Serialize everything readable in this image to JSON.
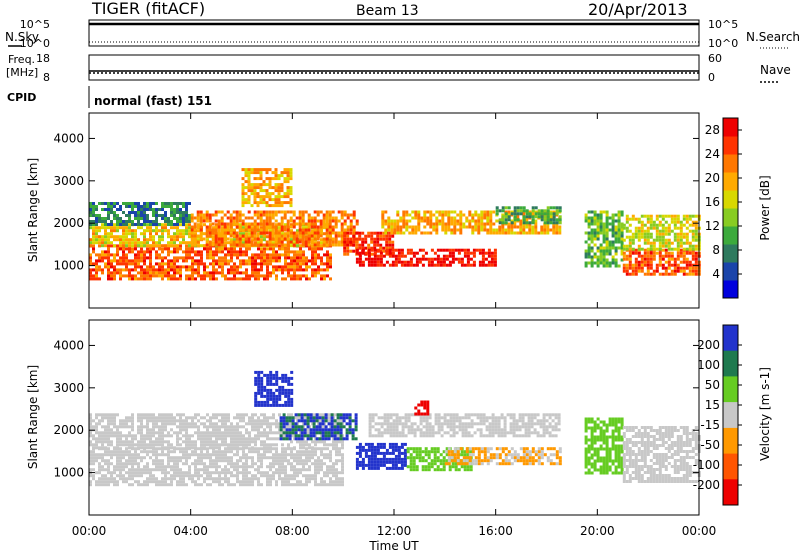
{
  "header": {
    "station": "TIGER (fitACF)",
    "beam": "Beam 13",
    "date": "20/Apr/2013"
  },
  "top_panels": {
    "nsky_label": "N.Sky",
    "nsky_ticks": [
      "10^5",
      "10^0"
    ],
    "nsearch_label": "N.Search",
    "nsearch_ticks": [
      "10^5",
      "10^0"
    ],
    "freq_label_1": "Freq.",
    "freq_label_2": "[MHz]",
    "freq_ticks": [
      "18",
      "8"
    ],
    "nave_label": "Nave",
    "nave_ticks": [
      "60",
      "0"
    ],
    "cpid_label": "CPID",
    "cpid_value": "normal (fast) 151"
  },
  "chart_data": [
    {
      "type": "heatmap",
      "title": "",
      "xlabel": "Time UT",
      "ylabel": "Slant Range [km]",
      "x_ticks": [
        "00:00",
        "04:00",
        "08:00",
        "12:00",
        "16:00",
        "20:00",
        "00:00"
      ],
      "xlim_hours": [
        0,
        24
      ],
      "ylim": [
        0,
        4600
      ],
      "y_ticks": [
        "1000",
        "2000",
        "3000",
        "4000"
      ],
      "colorbar": {
        "label": "Power [dB]",
        "ticks": [
          "4",
          "8",
          "12",
          "16",
          "20",
          "24",
          "28"
        ],
        "range": [
          0,
          30
        ],
        "colors": [
          "#0000dd",
          "#1a44aa",
          "#2e7a5e",
          "#3caa3c",
          "#88cc22",
          "#d8d800",
          "#ffaa00",
          "#ff7700",
          "#ff3300",
          "#ee0000"
        ]
      },
      "regions": [
        {
          "t": [
            0.0,
            9.5
          ],
          "r": [
            700,
            1500
          ],
          "value": 24
        },
        {
          "t": [
            0.0,
            9.5
          ],
          "r": [
            1500,
            2000
          ],
          "value": 18
        },
        {
          "t": [
            0.0,
            4.0
          ],
          "r": [
            2000,
            2500
          ],
          "value": 8
        },
        {
          "t": [
            4.0,
            10.5
          ],
          "r": [
            1500,
            2300
          ],
          "value": 22
        },
        {
          "t": [
            6.0,
            8.0
          ],
          "r": [
            2400,
            3300
          ],
          "value": 20
        },
        {
          "t": [
            10.0,
            12.0
          ],
          "r": [
            1300,
            1800
          ],
          "value": 26
        },
        {
          "t": [
            10.5,
            16.0
          ],
          "r": [
            1000,
            1400
          ],
          "value": 28
        },
        {
          "t": [
            11.5,
            18.5
          ],
          "r": [
            1800,
            2300
          ],
          "value": 20
        },
        {
          "t": [
            16.0,
            18.5
          ],
          "r": [
            2000,
            2400
          ],
          "value": 10
        },
        {
          "t": [
            19.5,
            21.0
          ],
          "r": [
            1000,
            2300
          ],
          "value": 12
        },
        {
          "t": [
            21.0,
            24.0
          ],
          "r": [
            800,
            1400
          ],
          "value": 24
        },
        {
          "t": [
            21.0,
            24.0
          ],
          "r": [
            1400,
            2200
          ],
          "value": 16
        }
      ]
    },
    {
      "type": "heatmap",
      "title": "",
      "xlabel": "Time UT",
      "ylabel": "Slant Range [km]",
      "x_ticks": [
        "00:00",
        "04:00",
        "08:00",
        "12:00",
        "16:00",
        "20:00",
        "00:00"
      ],
      "xlim_hours": [
        0,
        24
      ],
      "ylim": [
        0,
        4600
      ],
      "y_ticks": [
        "1000",
        "2000",
        "3000",
        "4000"
      ],
      "colorbar": {
        "label": "Velocity [m s-1]",
        "ticks": [
          "200",
          "100",
          "50",
          "15",
          "-15",
          "-50",
          "-100",
          "-200"
        ],
        "range": [
          -250,
          250
        ],
        "colors": [
          "#2233cc",
          "#1f7a4f",
          "#66cc22",
          "#c8c8c8",
          "#ff9900",
          "#ff5500",
          "#ee0000"
        ]
      },
      "regions": [
        {
          "t": [
            0.0,
            10.0
          ],
          "r": [
            700,
            1600
          ],
          "value": 0
        },
        {
          "t": [
            0.0,
            10.0
          ],
          "r": [
            1600,
            2400
          ],
          "value": 5
        },
        {
          "t": [
            7.5,
            10.5
          ],
          "r": [
            1800,
            2400
          ],
          "value": 180
        },
        {
          "t": [
            6.5,
            8.0
          ],
          "r": [
            2600,
            3400
          ],
          "value": 200
        },
        {
          "t": [
            10.5,
            12.5
          ],
          "r": [
            1100,
            1700
          ],
          "value": 220
        },
        {
          "t": [
            12.5,
            15.0
          ],
          "r": [
            1100,
            1600
          ],
          "value": 60
        },
        {
          "t": [
            14.0,
            18.5
          ],
          "r": [
            1200,
            1600
          ],
          "value": -40
        },
        {
          "t": [
            11.0,
            18.5
          ],
          "r": [
            1900,
            2400
          ],
          "value": 0
        },
        {
          "t": [
            12.8,
            13.3
          ],
          "r": [
            2400,
            2700
          ],
          "value": -200
        },
        {
          "t": [
            19.5,
            21.0
          ],
          "r": [
            1000,
            2300
          ],
          "value": 60
        },
        {
          "t": [
            21.0,
            24.0
          ],
          "r": [
            800,
            2100
          ],
          "value": 0
        }
      ]
    }
  ]
}
